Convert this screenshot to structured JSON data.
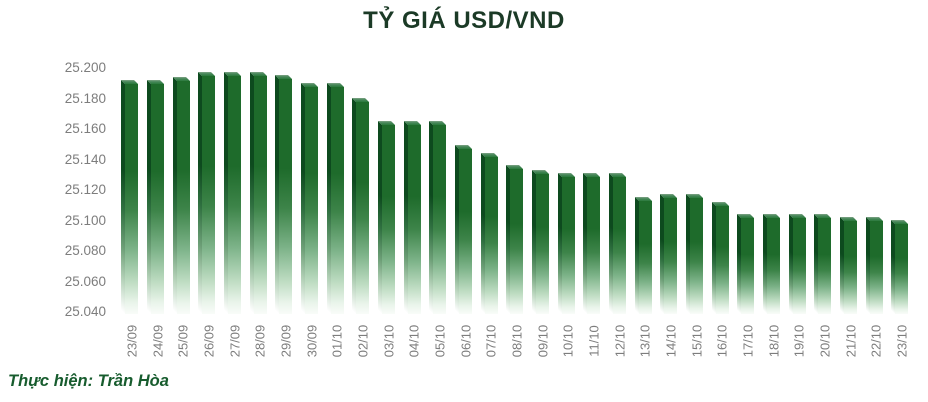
{
  "chart_data": {
    "type": "bar",
    "title": "TỶ GIÁ USD/VND",
    "xlabel": "",
    "ylabel": "",
    "categories": [
      "23/09",
      "24/09",
      "25/09",
      "26/09",
      "27/09",
      "28/09",
      "29/09",
      "30/09",
      "01/10",
      "02/10",
      "03/10",
      "04/10",
      "05/10",
      "06/10",
      "07/10",
      "08/10",
      "09/10",
      "10/10",
      "11/10",
      "12/10",
      "13/10",
      "14/10",
      "15/10",
      "16/10",
      "17/10",
      "18/10",
      "19/10",
      "20/10",
      "21/10",
      "22/10",
      "23/10"
    ],
    "values": [
      25190,
      25190,
      25192,
      25195,
      25195,
      25195,
      25193,
      25188,
      25188,
      25178,
      25163,
      25163,
      25163,
      25147,
      25142,
      25134,
      25131,
      25129,
      25129,
      25129,
      25113,
      25115,
      25115,
      25110,
      25102,
      25102,
      25102,
      25102,
      25100,
      25100,
      25098
    ],
    "y_ticks": [
      "25.200",
      "25.180",
      "25.160",
      "25.140",
      "25.120",
      "25.100",
      "25.080",
      "25.060",
      "25.040"
    ],
    "ylim": [
      25040,
      25200
    ],
    "y_tick_step": 20,
    "grid": false,
    "legend": "none",
    "bar_color": "#1e6b2b",
    "bar_fade_to": "#f9fcf9",
    "axis_label_color": "#7d7d7d",
    "title_color": "#1b3a26"
  },
  "footer": {
    "credit": "Thực hiện: Trần Hòa"
  }
}
